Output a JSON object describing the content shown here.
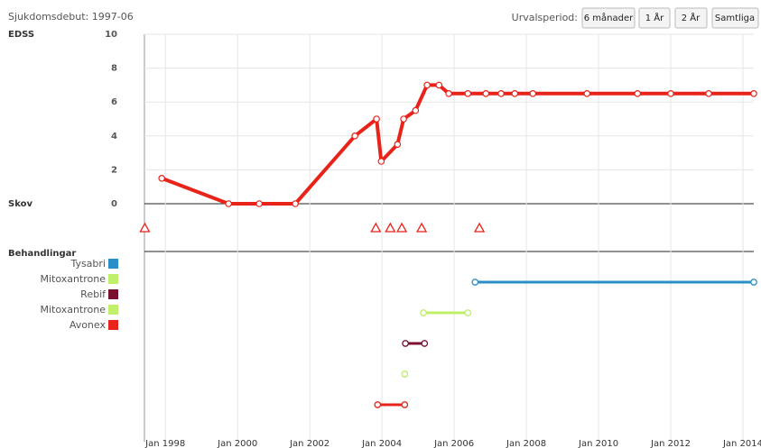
{
  "header": {
    "debut": "Sjukdomsdebut: 1997-06",
    "period_label": "Urvalsperiod:",
    "buttons": [
      "6 månader",
      "1 År",
      "2 År",
      "Samtliga"
    ]
  },
  "chart_data": {
    "type": "line",
    "xlim": [
      1997.42,
      2014.3
    ],
    "xticks": [
      {
        "value": 1998,
        "label": "Jan 1998"
      },
      {
        "value": 2000,
        "label": "Jan 2000"
      },
      {
        "value": 2002,
        "label": "Jan 2002"
      },
      {
        "value": 2004,
        "label": "Jan 2004"
      },
      {
        "value": 2006,
        "label": "Jan 2006"
      },
      {
        "value": 2008,
        "label": "Jan 2008"
      },
      {
        "value": 2010,
        "label": "Jan 2010"
      },
      {
        "value": 2012,
        "label": "Jan 2012"
      },
      {
        "value": 2014,
        "label": "Jan 2014"
      }
    ],
    "ylim": [
      0,
      10
    ],
    "yticks": [
      0,
      2,
      4,
      6,
      8,
      10
    ],
    "grid": true,
    "edss": {
      "label": "EDSS",
      "color": "#e8231a",
      "x": [
        1997.9,
        1999.75,
        2000.6,
        2001.6,
        2003.25,
        2003.85,
        2003.98,
        2004.43,
        2004.6,
        2004.93,
        2005.25,
        2005.58,
        2005.85,
        2006.38,
        2006.88,
        2007.3,
        2007.68,
        2008.18,
        2009.68,
        2011.08,
        2012.0,
        2013.05,
        2014.3
      ],
      "values": [
        1.5,
        0,
        0,
        0,
        4,
        5,
        2.5,
        3.5,
        5,
        5.5,
        7,
        7,
        6.5,
        6.5,
        6.5,
        6.5,
        6.5,
        6.5,
        6.5,
        6.5,
        6.5,
        6.5,
        6.5
      ]
    },
    "relapses": {
      "label": "Skov",
      "color": "#e8231a",
      "x": [
        1997.43,
        2003.83,
        2004.23,
        2004.55,
        2005.1,
        2006.7
      ]
    },
    "treatments": {
      "label": "Behandlingar",
      "items": [
        {
          "name": "Tysabri",
          "color": "#2a8fc8",
          "start": 2006.58,
          "end": 2014.3
        },
        {
          "name": "Mitoxantrone",
          "color": "#c0f06a",
          "start": 2005.15,
          "end": 2006.38
        },
        {
          "name": "Rebif",
          "color": "#7a1030",
          "start": 2004.65,
          "end": 2005.18
        },
        {
          "name": "Mitoxantrone",
          "color": "#c0f06a",
          "start": 2004.63,
          "end": 2004.63
        },
        {
          "name": "Avonex",
          "color": "#e8231a",
          "start": 2003.88,
          "end": 2004.63
        }
      ]
    }
  }
}
